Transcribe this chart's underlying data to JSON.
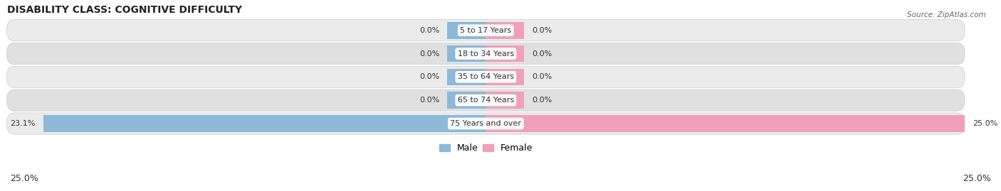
{
  "title": "DISABILITY CLASS: COGNITIVE DIFFICULTY",
  "source": "Source: ZipAtlas.com",
  "categories": [
    "5 to 17 Years",
    "18 to 34 Years",
    "35 to 64 Years",
    "65 to 74 Years",
    "75 Years and over"
  ],
  "male_values": [
    0.0,
    0.0,
    0.0,
    0.0,
    23.1
  ],
  "female_values": [
    0.0,
    0.0,
    0.0,
    0.0,
    25.0
  ],
  "male_color": "#8db8d8",
  "female_color": "#f0a0ba",
  "row_bg_color_odd": "#ebebeb",
  "row_bg_color_even": "#e0e0e0",
  "xlim": 25.0,
  "stub_size": 2.0,
  "x_left_label": "25.0%",
  "x_right_label": "25.0%",
  "legend_male": "Male",
  "legend_female": "Female",
  "title_fontsize": 10,
  "label_fontsize": 8,
  "category_fontsize": 8,
  "axis_label_fontsize": 9
}
